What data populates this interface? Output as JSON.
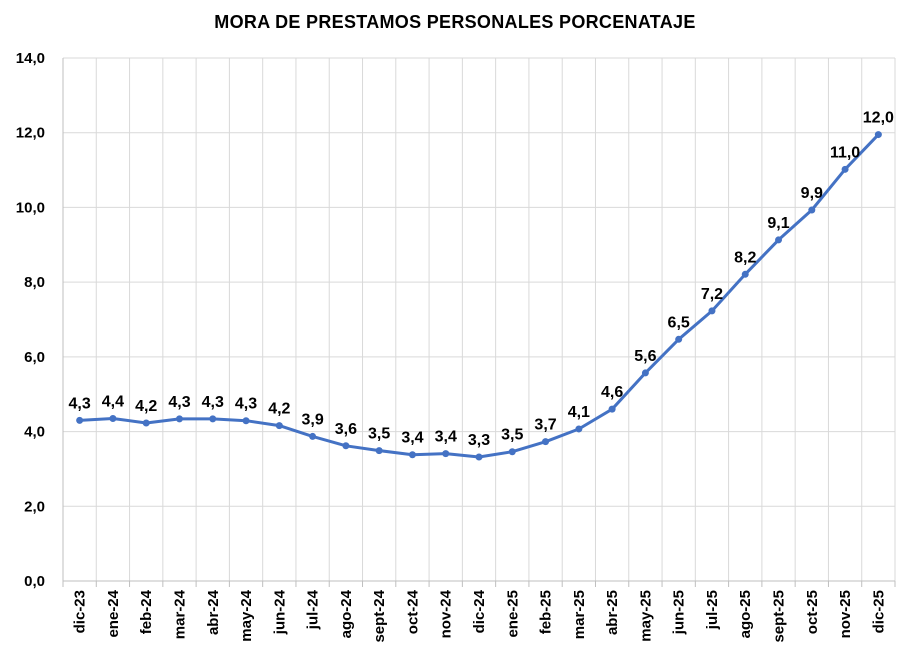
{
  "chart_data": {
    "type": "line",
    "title": "MORA DE PRESTAMOS PERSONALES PORCENATAJE",
    "xlabel": "",
    "ylabel": "",
    "ylim": [
      0,
      14
    ],
    "yticks": [
      "0,0",
      "2,0",
      "4,0",
      "6,0",
      "8,0",
      "10,0",
      "12,0",
      "14,0"
    ],
    "grid": true,
    "legend": "none",
    "series_color": "#4472C4",
    "categories": [
      "dic-23",
      "ene-24",
      "feb-24",
      "mar-24",
      "abr-24",
      "may-24",
      "jun-24",
      "jul-24",
      "ago-24",
      "sept-24",
      "oct-24",
      "nov-24",
      "dic-24",
      "ene-25",
      "feb-25",
      "mar-25",
      "abr-25",
      "may-25",
      "jun-25",
      "jul-25",
      "ago-25",
      "sept-25",
      "oct-25",
      "nov-25",
      "dic-25"
    ],
    "values": [
      4.3,
      4.35,
      4.23,
      4.34,
      4.34,
      4.29,
      4.16,
      3.87,
      3.62,
      3.49,
      3.38,
      3.41,
      3.32,
      3.46,
      3.73,
      4.07,
      4.6,
      5.57,
      6.47,
      7.23,
      8.21,
      9.13,
      9.93,
      11.02,
      11.95
    ],
    "value_labels": [
      "4,3",
      "4,4",
      "4,2",
      "4,3",
      "4,3",
      "4,3",
      "4,2",
      "3,9",
      "3,6",
      "3,5",
      "3,4",
      "3,4",
      "3,3",
      "3,5",
      "3,7",
      "4,1",
      "4,6",
      "5,6",
      "6,5",
      "7,2",
      "8,2",
      "9,1",
      "9,9",
      "11,0",
      "12,0"
    ]
  }
}
